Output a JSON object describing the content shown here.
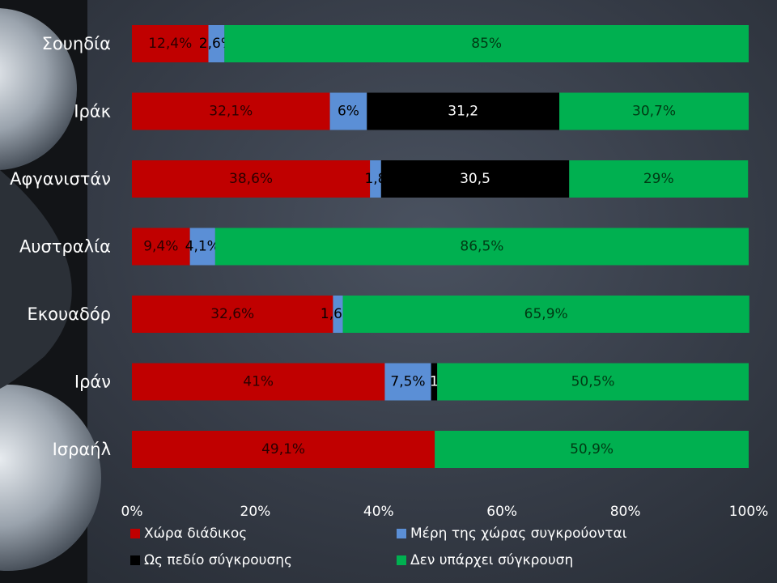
{
  "chart_data": {
    "type": "bar",
    "orientation": "horizontal",
    "stacked": true,
    "percent_stacked": true,
    "categories": [
      "Σουηδία",
      "Ιράκ",
      "Αφγανιστάν",
      "Αυστραλία",
      "Εκουαδόρ",
      "Ιράν",
      "Ισραήλ"
    ],
    "series": [
      {
        "name": "Χώρα διάδικος",
        "color": "#c00000",
        "label_color": "#2a0000",
        "values": [
          12.4,
          32.1,
          38.6,
          9.4,
          32.6,
          41,
          49.1
        ],
        "data_labels": [
          "12,4%",
          "32,1%",
          "38,6%",
          "9,4%",
          "32,6%",
          "41%",
          "49,1%"
        ]
      },
      {
        "name": "Μέρη της χώρας συγκρούονται",
        "color": "#5b8fd6",
        "label_color": "#000000",
        "values": [
          2.6,
          6,
          1.8,
          4.1,
          1.6,
          7.5,
          0
        ],
        "data_labels": [
          "2,6%",
          "6%",
          "1,8",
          "4,1%",
          "1,6%",
          "7,5%",
          ""
        ]
      },
      {
        "name": "Ως πεδίο σύγκρουσης",
        "color": "#000000",
        "label_color": "#ffffff",
        "values": [
          0,
          31.2,
          30.5,
          0,
          0,
          1,
          0
        ],
        "data_labels": [
          "",
          "31,2",
          "30,5",
          "",
          "",
          "1",
          ""
        ]
      },
      {
        "name": "Δεν υπάρχει σύγκρουση",
        "color": "#00b050",
        "label_color": "#003a14",
        "values": [
          85,
          30.7,
          29,
          86.5,
          65.9,
          50.5,
          50.9
        ],
        "data_labels": [
          "85%",
          "30,7%",
          "29%",
          "86,5%",
          "65,9%",
          "50,5%",
          "50,9%"
        ]
      }
    ],
    "x_ticks": [
      "0%",
      "20%",
      "40%",
      "60%",
      "80%",
      "100%"
    ],
    "xlim": [
      0,
      100
    ],
    "grid": false,
    "legend_position": "bottom",
    "title": "",
    "xlabel": "",
    "ylabel": ""
  }
}
